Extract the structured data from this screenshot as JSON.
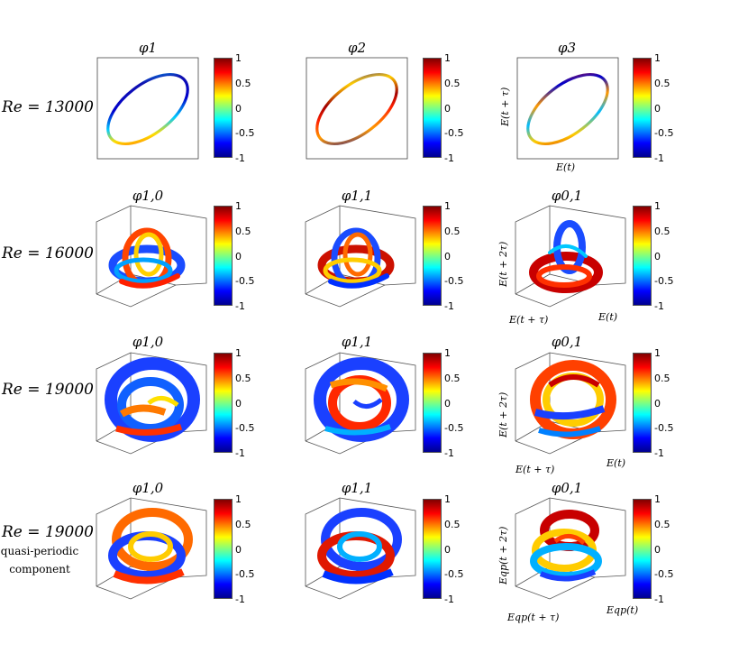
{
  "rows": [
    {
      "label": "Re = 13000",
      "sub": ""
    },
    {
      "label": "Re = 16000",
      "sub": ""
    },
    {
      "label": "Re = 19000",
      "sub": ""
    },
    {
      "label": "Re = 19000",
      "sub1": "quasi-periodic",
      "sub2": "component"
    }
  ],
  "titles": {
    "r1": [
      "φ1",
      "φ2",
      "φ3"
    ],
    "r2": [
      "φ1,0",
      "φ1,1",
      "φ0,1"
    ],
    "r3": [
      "φ1,0",
      "φ1,1",
      "φ0,1"
    ],
    "r4": [
      "φ1,0",
      "φ1,1",
      "φ0,1"
    ]
  },
  "colorbar_ticks": [
    "1",
    "0.5",
    "0",
    "-0.5",
    "-1"
  ],
  "axis_labels": {
    "r1_x": "E(t)",
    "r1_y": "E(t + τ)",
    "r2_x": "E(t)",
    "r2_y": "E(t + 2τ)",
    "r2_z": "E(t + τ)",
    "r3_x": "E(t)",
    "r3_y": "E(t + 2τ)",
    "r3_z": "E(t + τ)",
    "r4_x": "Eqp(t)",
    "r4_y": "Eqp(t + 2τ)",
    "r4_z": "Eqp(t + τ)"
  }
}
